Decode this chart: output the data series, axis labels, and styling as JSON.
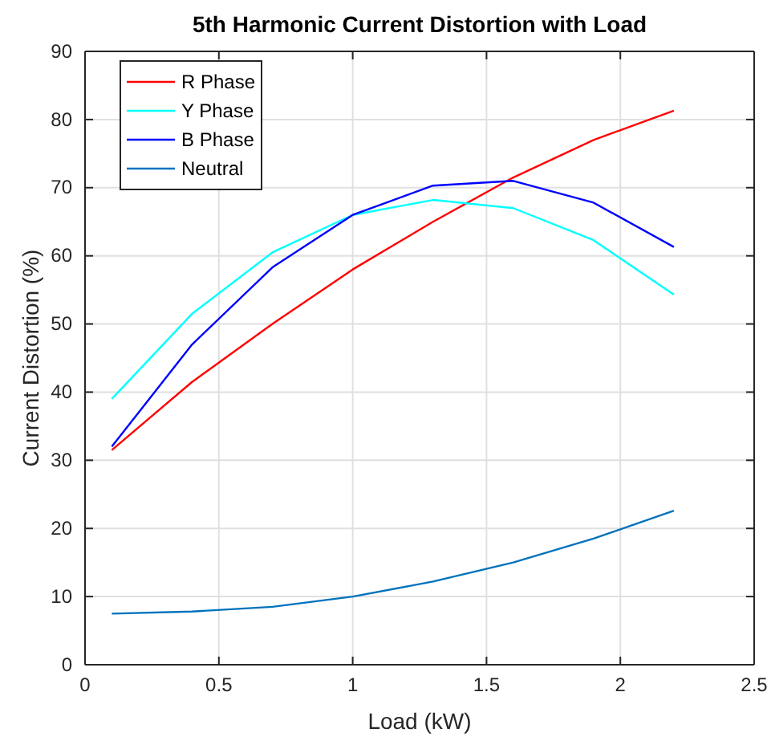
{
  "chart_data": {
    "type": "line",
    "title": "5th Harmonic Current Distortion with Load",
    "xlabel": "Load (kW)",
    "ylabel": "Current Distortion (%)",
    "x": [
      0.1,
      0.4,
      0.7,
      1.0,
      1.3,
      1.6,
      1.9,
      2.2
    ],
    "series": [
      {
        "name": "R Phase",
        "color": "#ff0000",
        "values": [
          31.5,
          41.5,
          50,
          58,
          65,
          71.5,
          77,
          81.3
        ]
      },
      {
        "name": "Y Phase",
        "color": "#00ffff",
        "values": [
          39,
          51.5,
          60.5,
          66,
          68.2,
          67,
          62.3,
          54.3
        ]
      },
      {
        "name": "B Phase",
        "color": "#0000ff",
        "values": [
          32,
          47,
          58.3,
          66,
          70.3,
          71,
          67.8,
          61.3
        ]
      },
      {
        "name": "Neutral",
        "color": "#0072bd",
        "values": [
          7.5,
          7.8,
          8.5,
          10,
          12.2,
          15,
          18.5,
          22.6
        ]
      }
    ],
    "xlim": [
      0,
      2.5
    ],
    "xticks": [
      0,
      0.5,
      1,
      1.5,
      2,
      2.5
    ],
    "ylim": [
      0,
      90
    ],
    "yticks": [
      0,
      10,
      20,
      30,
      40,
      50,
      60,
      70,
      80,
      90
    ],
    "grid": true,
    "legend": "top left",
    "marker": "none",
    "line_style": "solid"
  }
}
